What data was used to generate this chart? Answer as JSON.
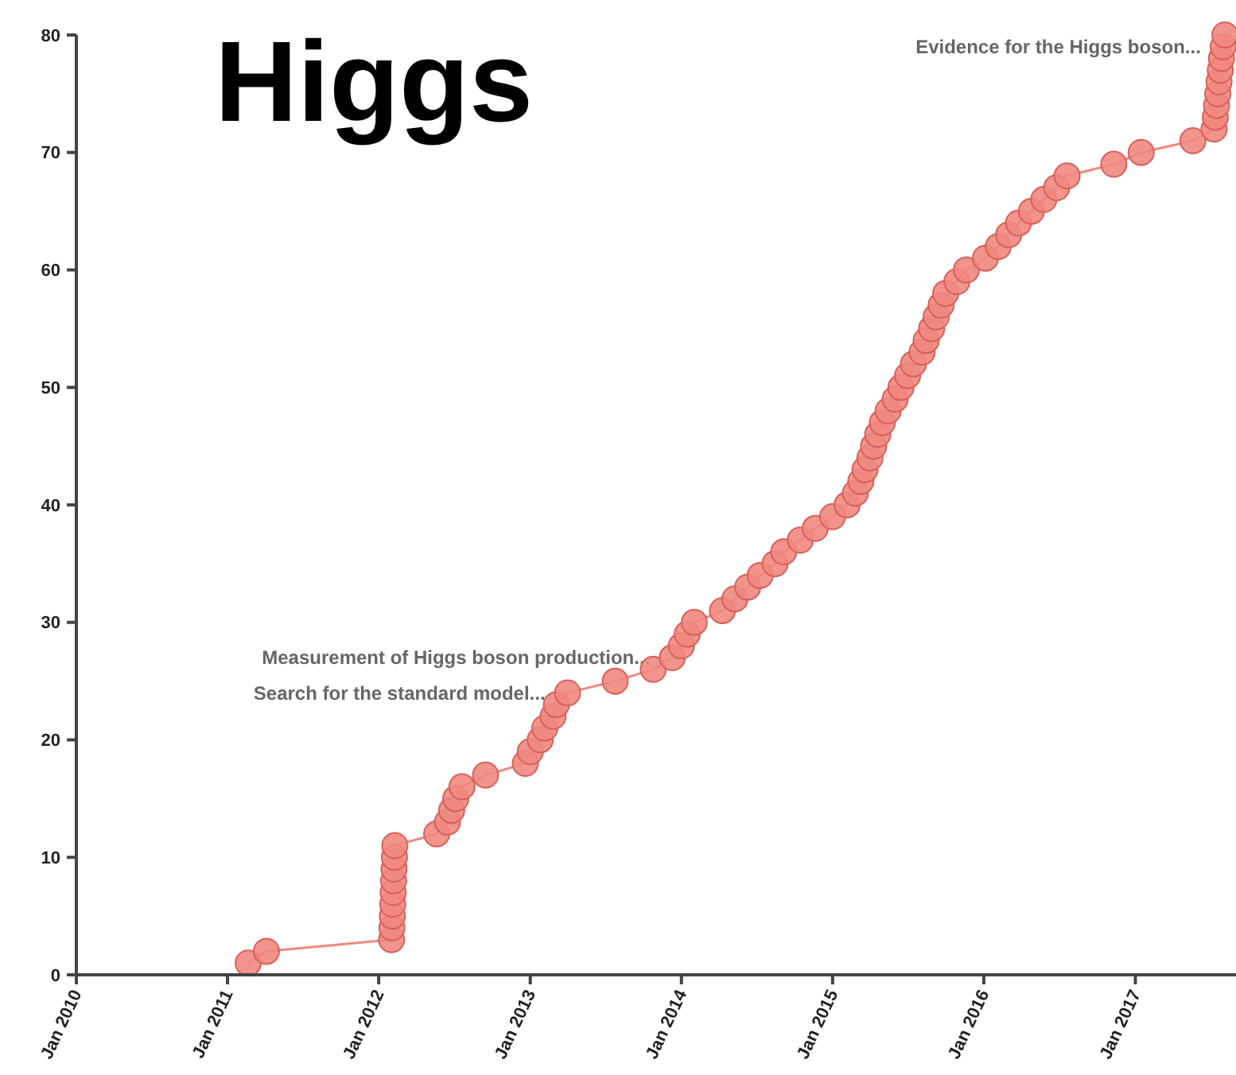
{
  "chart_data": {
    "type": "line",
    "title": "Higgs",
    "marker": "circle",
    "grid": false,
    "xlim": [
      "2010-01",
      "2017-09"
    ],
    "xticks": [
      {
        "value": "2010-01",
        "label": "Jan 2010"
      },
      {
        "value": "2011-01",
        "label": "Jan 2011"
      },
      {
        "value": "2012-01",
        "label": "Jan 2012"
      },
      {
        "value": "2013-01",
        "label": "Jan 2013"
      },
      {
        "value": "2014-01",
        "label": "Jan 2014"
      },
      {
        "value": "2015-01",
        "label": "Jan 2015"
      },
      {
        "value": "2016-01",
        "label": "Jan 2016"
      },
      {
        "value": "2017-01",
        "label": "Jan 2017"
      }
    ],
    "ylim": [
      0,
      80
    ],
    "yticks": [
      0,
      10,
      20,
      30,
      40,
      50,
      60,
      70,
      80
    ],
    "x": [
      "2011-02-20",
      "2011-04-05",
      "2012-02-01",
      "2012-02-02",
      "2012-02-03",
      "2012-02-04",
      "2012-02-05",
      "2012-02-06",
      "2012-02-07",
      "2012-02-08",
      "2012-02-09",
      "2012-05-20",
      "2012-06-15",
      "2012-06-25",
      "2012-07-05",
      "2012-07-20",
      "2012-09-15",
      "2012-12-20",
      "2013-01-01",
      "2013-01-25",
      "2013-02-05",
      "2013-02-25",
      "2013-03-05",
      "2013-04-01",
      "2013-07-25",
      "2013-10-25",
      "2013-12-10",
      "2014-01-01",
      "2014-01-15",
      "2014-02-01",
      "2014-04-10",
      "2014-05-10",
      "2014-06-10",
      "2014-07-10",
      "2014-08-15",
      "2014-09-05",
      "2014-10-15",
      "2014-11-20",
      "2015-01-01",
      "2015-02-05",
      "2015-02-25",
      "2015-03-10",
      "2015-03-20",
      "2015-04-01",
      "2015-04-10",
      "2015-04-20",
      "2015-05-01",
      "2015-05-15",
      "2015-06-01",
      "2015-06-15",
      "2015-07-01",
      "2015-07-15",
      "2015-08-05",
      "2015-08-15",
      "2015-08-28",
      "2015-09-08",
      "2015-09-20",
      "2015-10-01",
      "2015-10-28",
      "2015-11-20",
      "2016-01-05",
      "2016-02-05",
      "2016-03-01",
      "2016-03-25",
      "2016-04-25",
      "2016-05-25",
      "2016-06-25",
      "2016-07-20",
      "2016-11-10",
      "2017-01-15",
      "2017-05-20",
      "2017-07-10",
      "2017-07-13",
      "2017-07-16",
      "2017-07-19",
      "2017-07-22",
      "2017-07-25",
      "2017-07-28",
      "2017-08-01",
      "2017-08-05"
    ],
    "series": [
      {
        "color": "#ef8880",
        "values": [
          1,
          2,
          3,
          4,
          5,
          6,
          7,
          8,
          9,
          10,
          11,
          12,
          13,
          14,
          15,
          16,
          17,
          18,
          19,
          20,
          21,
          22,
          23,
          24,
          25,
          26,
          27,
          28,
          29,
          30,
          31,
          32,
          33,
          34,
          35,
          36,
          37,
          38,
          39,
          40,
          41,
          42,
          43,
          44,
          45,
          46,
          47,
          48,
          49,
          50,
          51,
          52,
          53,
          54,
          55,
          56,
          57,
          58,
          59,
          60,
          61,
          62,
          63,
          64,
          65,
          66,
          67,
          68,
          69,
          70,
          71,
          72,
          73,
          74,
          75,
          76,
          77,
          78,
          79,
          80
        ]
      }
    ],
    "annotations": [
      {
        "text": "Evidence for the Higgs boson...",
        "x": "2017-08-01",
        "y": 79
      },
      {
        "text": "Measurement of Higgs boson production...",
        "x": "2013-12-10",
        "y": 27
      },
      {
        "text": "Search for the standard model...",
        "x": "2013-04-01",
        "y": 24
      }
    ]
  }
}
